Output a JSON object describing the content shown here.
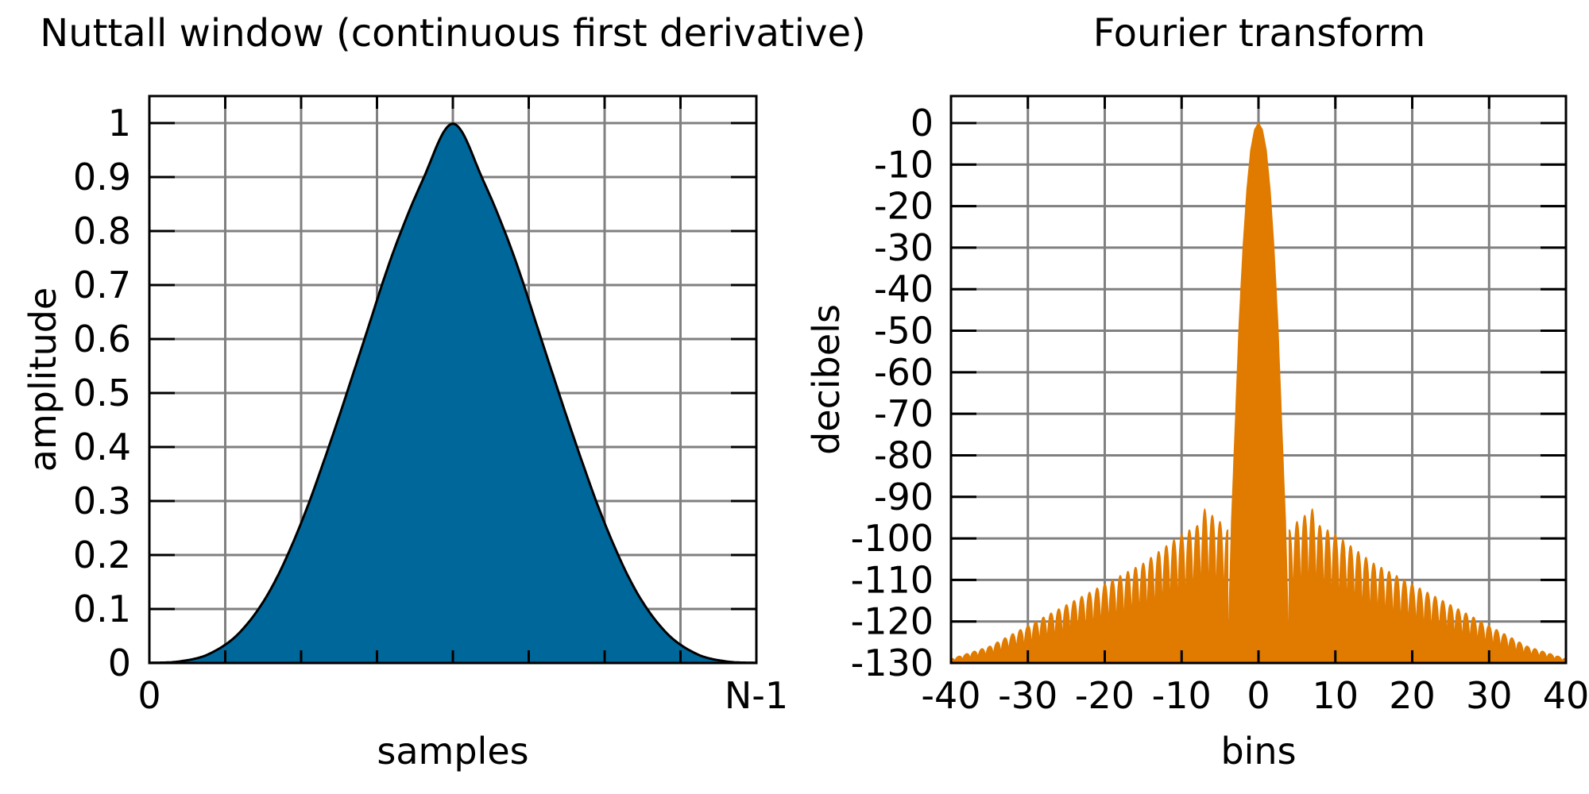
{
  "chart_data": [
    {
      "type": "area",
      "title": "Nuttall window (continuous first derivative)",
      "xlabel": "samples",
      "ylabel": "amplitude",
      "x_tick_labels": [
        "0",
        "N-1"
      ],
      "y_ticks": [
        0,
        0.1,
        0.2,
        0.3,
        0.4,
        0.5,
        0.6,
        0.7,
        0.8,
        0.9,
        1
      ],
      "y_tick_labels": [
        "0",
        "0.1",
        "0.2",
        "0.3",
        "0.4",
        "0.5",
        "0.6",
        "0.7",
        "0.8",
        "0.9",
        "1"
      ],
      "xlim": [
        0,
        1
      ],
      "ylim": [
        0,
        1.05
      ],
      "grid": true,
      "x_grid_divisions": 8,
      "series": [
        {
          "x": [
            0,
            0.05,
            0.1,
            0.15,
            0.2,
            0.25,
            0.3,
            0.35,
            0.4,
            0.45,
            0.5,
            0.55,
            0.6,
            0.65,
            0.7,
            0.75,
            0.8,
            0.85,
            0.9,
            0.95,
            1
          ],
          "values": [
            0.0004,
            0.0029,
            0.0176,
            0.058,
            0.1368,
            0.2592,
            0.4148,
            0.5847,
            0.7554,
            0.8937,
            0.9988,
            0.8937,
            0.7554,
            0.5847,
            0.4148,
            0.2592,
            0.1368,
            0.058,
            0.0176,
            0.0029,
            0.0004
          ],
          "color": "#00679a"
        }
      ]
    },
    {
      "type": "line",
      "title": "Fourier transform",
      "xlabel": "bins",
      "ylabel": "decibels",
      "x_ticks": [
        -40,
        -30,
        -20,
        -10,
        0,
        10,
        20,
        30,
        40
      ],
      "x_tick_labels": [
        "-40",
        "-30",
        "-20",
        "-10",
        "0",
        "10",
        "20",
        "30",
        "40"
      ],
      "y_ticks": [
        0,
        -10,
        -20,
        -30,
        -40,
        -50,
        -60,
        -70,
        -80,
        -90,
        -100,
        -110,
        -120,
        -130
      ],
      "y_tick_labels": [
        "0",
        "-10",
        "-20",
        "-30",
        "-40",
        "-50",
        "-60",
        "-70",
        "-80",
        "-90",
        "-100",
        "-110",
        "-120",
        "-130"
      ],
      "xlim": [
        -40,
        40
      ],
      "ylim": [
        -130,
        6.5
      ],
      "grid": true,
      "series": [
        {
          "mainlobe": {
            "x": [
              -4,
              -3.5,
              -3,
              -2.5,
              -2,
              -1.5,
              -1,
              -0.5,
              0,
              0.5,
              1,
              1.5,
              2,
              2.5,
              3,
              3.5,
              4
            ],
            "values": [
              -130,
              -96,
              -72,
              -48,
              -30,
              -16,
              -6.5,
              -1.6,
              0,
              -1.6,
              -6.5,
              -16,
              -30,
              -48,
              -72,
              -96,
              -130
            ]
          },
          "sidelobe_envelope": {
            "x": [
              -40,
              -35,
              -30,
              -25,
              -20,
              -15,
              -10,
              -8,
              -7,
              -5,
              -4,
              4,
              5,
              7,
              8,
              10,
              15,
              20,
              25,
              30,
              35,
              40
            ],
            "values": [
              -129,
              -126,
              -121,
              -116,
              -111,
              -106,
              -99,
              -97,
              -93,
              -96,
              -98,
              -98,
              -96,
              -93,
              -97,
              -99,
              -106,
              -111,
              -116,
              -121,
              -126,
              -129
            ]
          },
          "color": "#e07b00"
        }
      ]
    }
  ]
}
